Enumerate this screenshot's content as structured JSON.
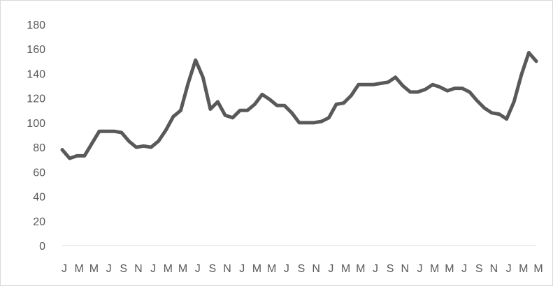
{
  "chart_data": {
    "type": "line",
    "title": "",
    "xlabel": "",
    "ylabel": "",
    "ylim": [
      0,
      180
    ],
    "ytick_step": 20,
    "grid": false,
    "legend": "none",
    "line_color": "#595959",
    "axis_color": "#d9d9d9",
    "x_tick_labels": [
      "J",
      "M",
      "M",
      "J",
      "S",
      "N",
      "J",
      "M",
      "M",
      "J",
      "S",
      "N",
      "J",
      "M",
      "M",
      "J",
      "S",
      "N",
      "J",
      "M",
      "M",
      "J",
      "S",
      "N",
      "J",
      "M",
      "M",
      "J",
      "S",
      "N",
      "J",
      "M",
      "M"
    ],
    "values": [
      78,
      71,
      73,
      73,
      83,
      93,
      93,
      93,
      92,
      85,
      80,
      81,
      80,
      85,
      94,
      105,
      110,
      132,
      151,
      137,
      111,
      117,
      106,
      104,
      110,
      110,
      115,
      123,
      119,
      114,
      114,
      108,
      100,
      100,
      100,
      101,
      104,
      115,
      116,
      122,
      131,
      131,
      131,
      132,
      133,
      137,
      130,
      125,
      125,
      127,
      131,
      129,
      126,
      128,
      128,
      125,
      118,
      112,
      108,
      107,
      103,
      117,
      139,
      157,
      150
    ]
  }
}
